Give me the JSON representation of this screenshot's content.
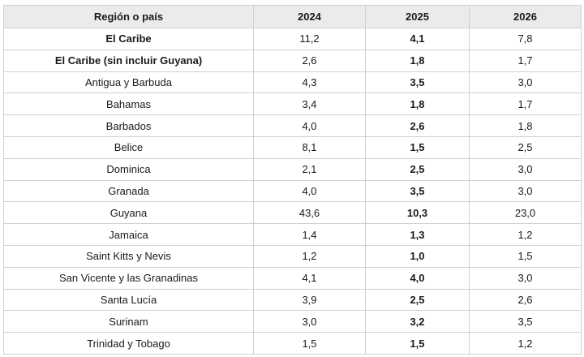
{
  "table": {
    "headers": [
      "Región o país",
      "2024",
      "2025",
      "2026"
    ],
    "rows": [
      {
        "name": "El Caribe",
        "y2024": "11,2",
        "y2025": "4,1",
        "y2026": "7,8",
        "bold_name": true
      },
      {
        "name": "El Caribe (sin incluir Guyana)",
        "y2024": "2,6",
        "y2025": "1,8",
        "y2026": "1,7",
        "bold_name": true
      },
      {
        "name": "Antigua y Barbuda",
        "y2024": "4,3",
        "y2025": "3,5",
        "y2026": "3,0",
        "bold_name": false
      },
      {
        "name": "Bahamas",
        "y2024": "3,4",
        "y2025": "1,8",
        "y2026": "1,7",
        "bold_name": false
      },
      {
        "name": "Barbados",
        "y2024": "4,0",
        "y2025": "2,6",
        "y2026": "1,8",
        "bold_name": false
      },
      {
        "name": "Belice",
        "y2024": "8,1",
        "y2025": "1,5",
        "y2026": "2,5",
        "bold_name": false
      },
      {
        "name": "Dominica",
        "y2024": "2,1",
        "y2025": "2,5",
        "y2026": "3,0",
        "bold_name": false
      },
      {
        "name": "Granada",
        "y2024": "4,0",
        "y2025": "3,5",
        "y2026": "3,0",
        "bold_name": false
      },
      {
        "name": "Guyana",
        "y2024": "43,6",
        "y2025": "10,3",
        "y2026": "23,0",
        "bold_name": false
      },
      {
        "name": "Jamaica",
        "y2024": "1,4",
        "y2025": "1,3",
        "y2026": "1,2",
        "bold_name": false
      },
      {
        "name": "Saint Kitts y Nevis",
        "y2024": "1,2",
        "y2025": "1,0",
        "y2026": "1,5",
        "bold_name": false
      },
      {
        "name": "San Vicente y las Granadinas",
        "y2024": "4,1",
        "y2025": "4,0",
        "y2026": "3,0",
        "bold_name": false
      },
      {
        "name": "Santa Lucía",
        "y2024": "3,9",
        "y2025": "2,5",
        "y2026": "2,6",
        "bold_name": false
      },
      {
        "name": "Surinam",
        "y2024": "3,0",
        "y2025": "3,2",
        "y2026": "3,5",
        "bold_name": false
      },
      {
        "name": "Trinidad y Tobago",
        "y2024": "1,5",
        "y2025": "1,5",
        "y2026": "1,2",
        "bold_name": false
      }
    ]
  }
}
